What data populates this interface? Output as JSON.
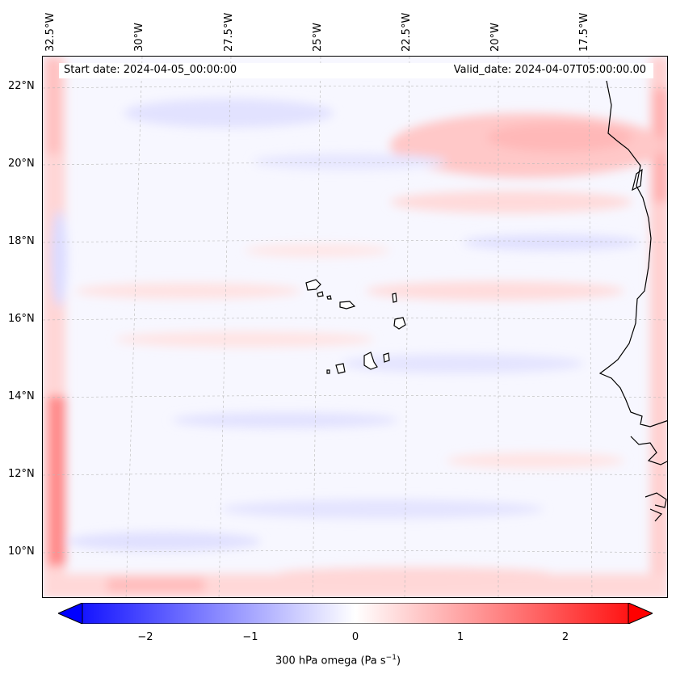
{
  "header": {
    "start_date": "Start date: 2024-04-05_00:00:00",
    "valid_date": "Valid_date: 2024-04-07T05:00:00.00"
  },
  "map": {
    "lat_labels": [
      "22°N",
      "20°N",
      "18°N",
      "16°N",
      "14°N",
      "12°N",
      "10°N"
    ],
    "lon_labels": [
      "32.5°W",
      "30°W",
      "27.5°W",
      "25°W",
      "22.5°W",
      "20°W",
      "17.5°W"
    ],
    "features": [
      "coastline-west-africa",
      "cape-verde-islands"
    ]
  },
  "colorbar": {
    "ticks": [
      "−2",
      "−1",
      "0",
      "1",
      "2"
    ],
    "tick_values": [
      -2,
      -1,
      0,
      1,
      2
    ],
    "vmin": -2.6,
    "vmax": 2.6,
    "extend": "both",
    "colors": {
      "low": "#0000ff",
      "mid": "#ffffff",
      "high": "#ff0000"
    },
    "label_main": "300 hPa omega (Pa s",
    "label_sup": "−1",
    "label_close": ")"
  }
}
